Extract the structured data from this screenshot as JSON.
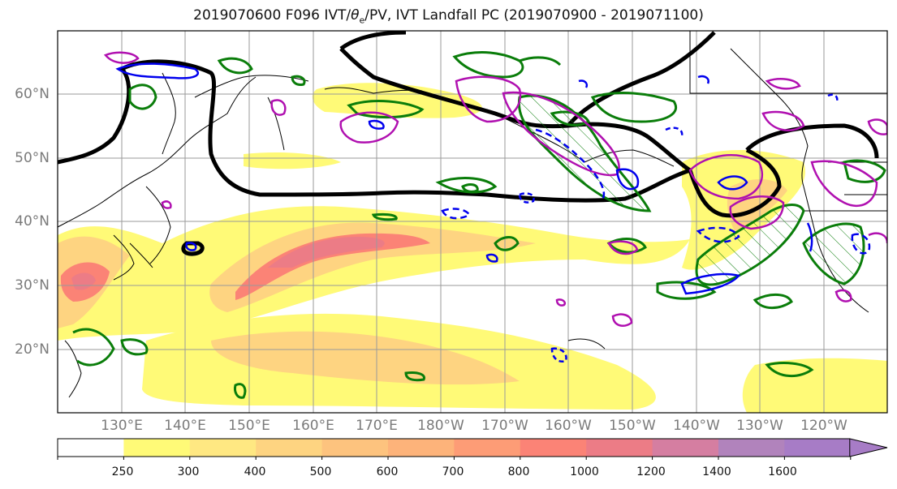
{
  "title_prefix": "2019070600 F096 IVT/",
  "title_theta": "θ",
  "title_sub": "e",
  "title_suffix": "/PV, IVT Landfall PC (2019070900 - 2019071100)",
  "lat_labels": [
    "60°N",
    "50°N",
    "40°N",
    "30°N",
    "20°N"
  ],
  "lon_labels": [
    "130°E",
    "140°E",
    "150°E",
    "160°E",
    "170°E",
    "180°W",
    "170°W",
    "160°W",
    "150°W",
    "140°W",
    "130°W",
    "120°W"
  ],
  "colorbar": {
    "levels": [
      "250",
      "300",
      "400",
      "500",
      "600",
      "700",
      "800",
      "1000",
      "1200",
      "1400",
      "1600"
    ],
    "colors": [
      "#ffffff",
      "#fffa77",
      "#ffe882",
      "#fed481",
      "#fdc37e",
      "#fdb37a",
      "#fd9c76",
      "#fb8376",
      "#ec7c86",
      "#d57ea1",
      "#b183bc",
      "#a77cc6"
    ]
  },
  "legend_colors": {
    "pv": "#0a7d0a",
    "theta_e_pos": "#b010b0",
    "theta_e_neg": "#0000ee",
    "landfall_pc": "#000000"
  }
}
